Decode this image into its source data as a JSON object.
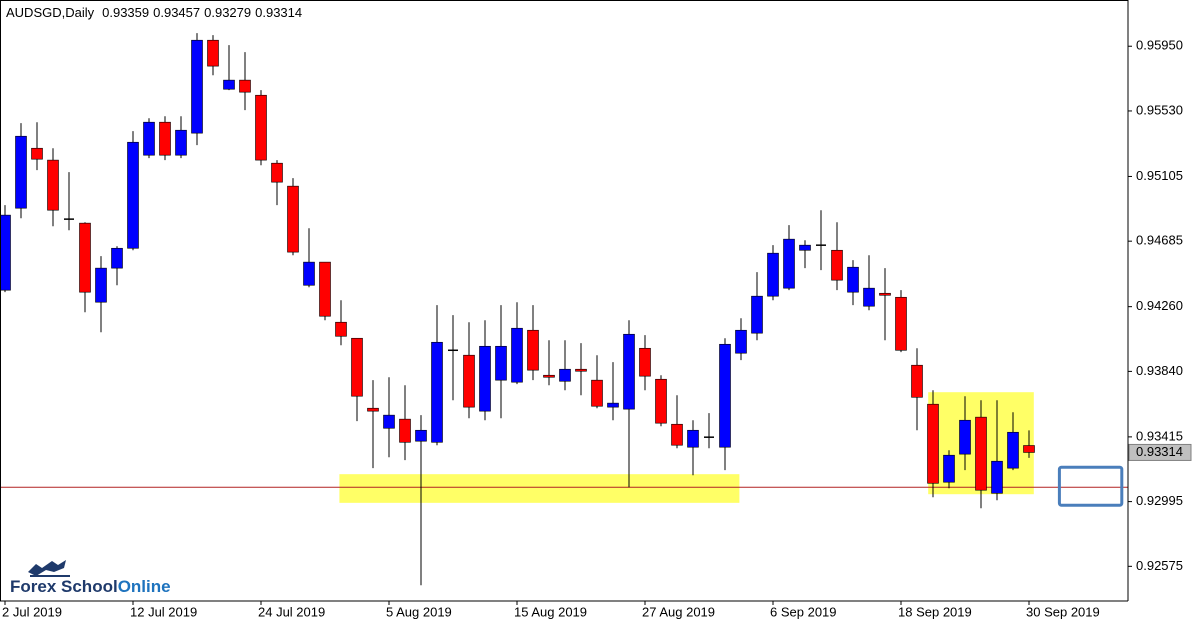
{
  "chart_data": {
    "type": "candlestick",
    "symbol": "AUDSGD,Daily",
    "categories": [
      "2 Jul 2019",
      null,
      null,
      null,
      null,
      null,
      null,
      null,
      "12 Jul 2019",
      null,
      null,
      null,
      null,
      null,
      null,
      null,
      "24 Jul 2019",
      null,
      null,
      null,
      null,
      null,
      null,
      null,
      "5 Aug 2019",
      null,
      null,
      null,
      null,
      null,
      null,
      null,
      "15 Aug 2019",
      null,
      null,
      null,
      null,
      null,
      null,
      null,
      "27 Aug 2019",
      null,
      null,
      null,
      null,
      null,
      null,
      null,
      "6 Sep 2019",
      null,
      null,
      null,
      null,
      null,
      null,
      null,
      "18 Sep 2019",
      null,
      null,
      null,
      null,
      null,
      null,
      null,
      "30 Sep 2019"
    ],
    "open": [
      0.94367,
      0.94899,
      0.95288,
      0.95211,
      0.94828,
      0.94802,
      0.94289,
      0.9451,
      0.94639,
      0.95243,
      0.95457,
      0.95243,
      0.95386,
      0.95989,
      0.95671,
      0.9573,
      0.95632,
      0.95191,
      0.95042,
      0.94399,
      0.94549,
      0.94159,
      0.94055,
      0.93601,
      0.93471,
      0.9353,
      0.93387,
      0.9338,
      0.93977,
      0.93945,
      0.93582,
      0.93783,
      0.9377,
      0.94107,
      0.93815,
      0.93776,
      0.93854,
      0.93783,
      0.93608,
      0.93595,
      0.9399,
      0.93789,
      0.93497,
      0.93348,
      0.93413,
      0.93348,
      0.93958,
      0.94088,
      0.94328,
      0.9438,
      0.94626,
      0.94659,
      0.94626,
      0.94354,
      0.94263,
      0.94347,
      0.94321,
      0.9388,
      0.93627,
      0.93121,
      0.93303,
      0.93543,
      0.93049,
      0.93212,
      0.93359
    ],
    "high": [
      0.94919,
      0.95451,
      0.95457,
      0.95288,
      0.95133,
      0.94808,
      0.94588,
      0.94652,
      0.95399,
      0.95483,
      0.95496,
      0.95496,
      0.96035,
      0.96022,
      0.95957,
      0.95912,
      0.95665,
      0.95211,
      0.95094,
      0.94769,
      0.94549,
      0.94302,
      0.94055,
      0.93783,
      0.93802,
      0.9375,
      0.93556,
      0.9427,
      0.94205,
      0.94159,
      0.94172,
      0.9427,
      0.94289,
      0.9427,
      0.94042,
      0.94042,
      0.94023,
      0.93945,
      0.939,
      0.94172,
      0.94075,
      0.93815,
      0.93685,
      0.93523,
      0.93569,
      0.94055,
      0.94185,
      0.94484,
      0.94659,
      0.94789,
      0.94691,
      0.94886,
      0.94808,
      0.94562,
      0.94594,
      0.9451,
      0.94367,
      0.9399,
      0.93718,
      0.93328,
      0.93679,
      0.93653,
      0.93653,
      0.93575,
      0.93457
    ],
    "low": [
      0.94354,
      0.94834,
      0.95146,
      0.94782,
      0.94756,
      0.94224,
      0.94094,
      0.94399,
      0.94626,
      0.95224,
      0.95211,
      0.95224,
      0.95308,
      0.95762,
      0.95665,
      0.95535,
      0.95178,
      0.94919,
      0.94594,
      0.94386,
      0.94172,
      0.9401,
      0.93517,
      0.93212,
      0.93283,
      0.93264,
      0.92452,
      0.93361,
      0.93653,
      0.93536,
      0.93523,
      0.93536,
      0.93757,
      0.93783,
      0.9375,
      0.93718,
      0.93685,
      0.93601,
      0.93523,
      0.93088,
      0.93718,
      0.93484,
      0.93341,
      0.93166,
      0.93341,
      0.93199,
      0.93913,
      0.94042,
      0.94302,
      0.94367,
      0.9451,
      0.94497,
      0.94367,
      0.9427,
      0.94237,
      0.94042,
      0.93965,
      0.93458,
      0.93023,
      0.93082,
      0.93199,
      0.92952,
      0.93004,
      0.93199,
      0.93279
    ],
    "close": [
      0.94854,
      0.95366,
      0.95217,
      0.94886,
      0.94828,
      0.94354,
      0.9451,
      0.94639,
      0.95327,
      0.95457,
      0.95243,
      0.95405,
      0.95989,
      0.95821,
      0.9573,
      0.95652,
      0.95211,
      0.95068,
      0.94614,
      0.94549,
      0.94198,
      0.94068,
      0.93679,
      0.93582,
      0.93556,
      0.9338,
      0.93458,
      0.94029,
      0.93977,
      0.93608,
      0.94003,
      0.94003,
      0.9412,
      0.93848,
      0.93802,
      0.93854,
      0.93841,
      0.93614,
      0.93634,
      0.94081,
      0.93809,
      0.93504,
      0.93361,
      0.93458,
      0.93413,
      0.94016,
      0.94107,
      0.94328,
      0.94607,
      0.94698,
      0.94659,
      0.94659,
      0.94432,
      0.94516,
      0.9438,
      0.94334,
      0.93977,
      0.93672,
      0.93114,
      0.93296,
      0.93523,
      0.93069,
      0.93257,
      0.93445,
      0.93314
    ],
    "up_color": "#0000ff",
    "down_color": "#ff0000",
    "wick_color": "#000000",
    "ylim": [
      0.9235,
      0.9625
    ],
    "yticks": [
      {
        "value": 0.9595,
        "label": "0.95950"
      },
      {
        "value": 0.9553,
        "label": "0.95530"
      },
      0.95105,
      0.94685,
      {
        "value": 0.9426,
        "label": "0.94260"
      },
      {
        "value": 0.9384,
        "label": "0.93840"
      },
      0.93415,
      0.92995,
      0.92575
    ],
    "zones": [
      {
        "xlim": [
          20.9,
          45.9
        ],
        "ylim": [
          0.92987,
          0.93173
        ],
        "fill": "#ffff66"
      },
      {
        "xlim": [
          57.7,
          64.3
        ],
        "ylim": [
          0.93043,
          0.93705
        ],
        "fill": "#ffff66"
      },
      {
        "xlim": [
          65.9,
          69.8
        ],
        "ylim": [
          0.92971,
          0.93218
        ],
        "stroke": "#4a7ebb"
      }
    ],
    "hlines": [
      {
        "value": 0.93088,
        "color": "#b22222"
      }
    ],
    "logo": {
      "text1": "Forex School",
      "text2": "Online"
    }
  }
}
